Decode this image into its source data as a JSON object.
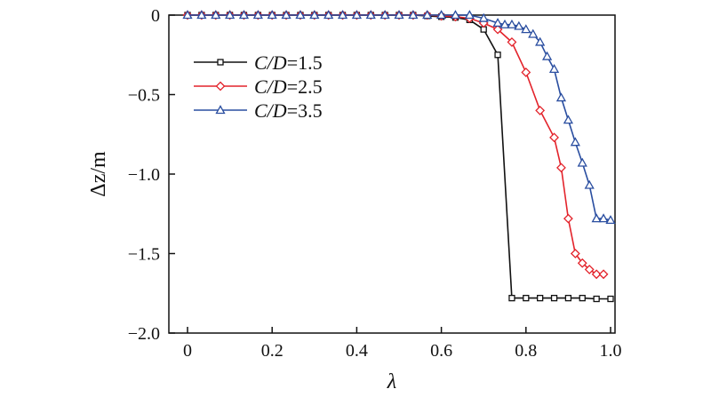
{
  "chart_data": {
    "type": "line",
    "xlabel": "λ",
    "ylabel": "Δz/m",
    "xlim": [
      0,
      1.0
    ],
    "ylim": [
      -2.0,
      0
    ],
    "xticks": [
      0,
      0.2,
      0.4,
      0.6,
      0.8,
      1.0
    ],
    "xtick_labels": [
      "0",
      "0.2",
      "0.4",
      "0.6",
      "0.8",
      "1.0"
    ],
    "yticks": [
      0,
      -0.5,
      -1.0,
      -1.5,
      -2.0
    ],
    "ytick_labels": [
      "0",
      "−0.5",
      "−1.0",
      "−1.5",
      "−2.0"
    ],
    "grid": false,
    "legend_position": "upper-left",
    "series": [
      {
        "name": "C/D=1.5",
        "legend_italic": "C/D",
        "legend_value": "=1.5",
        "color": "#111111",
        "marker": "square",
        "x": [
          0,
          0.0333,
          0.0667,
          0.1,
          0.1333,
          0.1667,
          0.2,
          0.2333,
          0.2667,
          0.3,
          0.3333,
          0.3667,
          0.4,
          0.4333,
          0.4667,
          0.5,
          0.5333,
          0.5667,
          0.6,
          0.6333,
          0.6667,
          0.7,
          0.7333,
          0.7667,
          0.8,
          0.8333,
          0.8667,
          0.9,
          0.9333,
          0.9667,
          1.0
        ],
        "y": [
          0,
          0,
          0,
          0,
          0,
          0,
          0,
          0,
          0,
          0,
          0,
          0,
          0,
          0,
          0,
          0,
          0,
          -0.005,
          -0.01,
          -0.015,
          -0.03,
          -0.09,
          -0.25,
          -1.78,
          -1.78,
          -1.78,
          -1.78,
          -1.78,
          -1.78,
          -1.785,
          -1.785
        ]
      },
      {
        "name": "C/D=2.5",
        "legend_italic": "C/D",
        "legend_value": "=2.5",
        "color": "#e3232b",
        "marker": "diamond",
        "x": [
          0,
          0.0333,
          0.0667,
          0.1,
          0.1333,
          0.1667,
          0.2,
          0.2333,
          0.2667,
          0.3,
          0.3333,
          0.3667,
          0.4,
          0.4333,
          0.4667,
          0.5,
          0.5333,
          0.5667,
          0.6,
          0.6333,
          0.6667,
          0.7,
          0.7333,
          0.7667,
          0.8,
          0.8333,
          0.8667,
          0.8833,
          0.9,
          0.9167,
          0.9333,
          0.95,
          0.9667,
          0.9833
        ],
        "y": [
          0,
          0,
          0,
          0,
          0,
          0,
          0,
          0,
          0,
          0,
          0,
          0,
          0,
          0,
          0,
          0,
          0,
          0,
          -0.005,
          -0.01,
          -0.02,
          -0.05,
          -0.09,
          -0.17,
          -0.36,
          -0.6,
          -0.77,
          -0.96,
          -1.28,
          -1.5,
          -1.56,
          -1.6,
          -1.63,
          -1.63
        ]
      },
      {
        "name": "C/D=3.5",
        "legend_italic": "C/D",
        "legend_value": "=3.5",
        "color": "#2a4ea0",
        "marker": "triangle",
        "x": [
          0,
          0.0333,
          0.0667,
          0.1,
          0.1333,
          0.1667,
          0.2,
          0.2333,
          0.2667,
          0.3,
          0.3333,
          0.3667,
          0.4,
          0.4333,
          0.4667,
          0.5,
          0.5333,
          0.5667,
          0.6,
          0.6333,
          0.6667,
          0.7,
          0.7333,
          0.75,
          0.7667,
          0.7833,
          0.8,
          0.8167,
          0.8333,
          0.85,
          0.8667,
          0.8833,
          0.9,
          0.9167,
          0.9333,
          0.95,
          0.9667,
          0.9833,
          1.0
        ],
        "y": [
          0,
          0,
          0,
          0,
          0,
          0,
          0,
          0,
          0,
          0,
          0,
          0,
          0,
          0,
          0,
          0,
          0,
          0,
          0,
          0,
          0,
          -0.02,
          -0.05,
          -0.06,
          -0.06,
          -0.07,
          -0.09,
          -0.12,
          -0.17,
          -0.26,
          -0.34,
          -0.52,
          -0.66,
          -0.8,
          -0.93,
          -1.07,
          -1.28,
          -1.28,
          -1.29
        ]
      }
    ]
  }
}
